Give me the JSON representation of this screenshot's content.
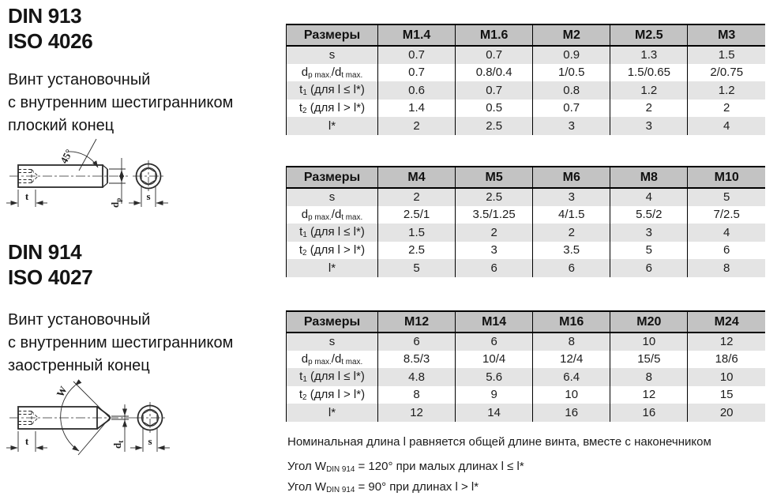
{
  "colors": {
    "header_bg": "#c3c3c3",
    "row_alt_bg": "#e4e4e4",
    "row_bg": "#ffffff",
    "border": "#000000",
    "text": "#1c1c1c"
  },
  "sections": [
    {
      "standards": [
        "DIN 913",
        "ISO 4026"
      ],
      "description": [
        "Винт установочный",
        "с внутренним шестигранником",
        "плоский конец"
      ]
    },
    {
      "standards": [
        "DIN 914",
        "ISO 4027"
      ],
      "description": [
        "Винт установочный",
        "с внутренним шестигранником",
        "заостренный конец"
      ]
    }
  ],
  "drawings": [
    {
      "name": "set-screw-flat-point",
      "labels": {
        "angle": "45°",
        "depth": "t",
        "dia_base": "d",
        "dia_sub": "p",
        "width_flats": "s"
      }
    },
    {
      "name": "set-screw-cone-point",
      "labels": {
        "angle": "W",
        "depth": "t",
        "dia_base": "d",
        "dia_sub": "t",
        "width_flats": "s"
      }
    }
  ],
  "tables": [
    {
      "header": [
        "Размеры",
        "M1.4",
        "M1.6",
        "M2",
        "M2.5",
        "M3"
      ],
      "rows": [
        {
          "label": [
            {
              "t": "s"
            }
          ],
          "values": [
            "0.7",
            "0.7",
            "0.9",
            "1.3",
            "1.5"
          ]
        },
        {
          "label": [
            {
              "t": "d"
            },
            {
              "s": "p max."
            },
            {
              "t": "/d"
            },
            {
              "s": "t max."
            }
          ],
          "values": [
            "0.7",
            "0.8/0.4",
            "1/0.5",
            "1.5/0.65",
            "2/0.75"
          ]
        },
        {
          "label": [
            {
              "t": "t"
            },
            {
              "s": "1"
            },
            {
              "t": " (для l ≤ l*)"
            }
          ],
          "values": [
            "0.6",
            "0.7",
            "0.8",
            "1.2",
            "1.2"
          ]
        },
        {
          "label": [
            {
              "t": "t"
            },
            {
              "s": "2"
            },
            {
              "t": " (для l > l*)"
            }
          ],
          "values": [
            "1.4",
            "0.5",
            "0.7",
            "2",
            "2"
          ]
        },
        {
          "label": [
            {
              "t": "l*"
            }
          ],
          "values": [
            "2",
            "2.5",
            "3",
            "3",
            "4"
          ]
        }
      ]
    },
    {
      "header": [
        "Размеры",
        "M4",
        "M5",
        "M6",
        "M8",
        "M10"
      ],
      "rows": [
        {
          "label": [
            {
              "t": "s"
            }
          ],
          "values": [
            "2",
            "2.5",
            "3",
            "4",
            "5"
          ]
        },
        {
          "label": [
            {
              "t": "d"
            },
            {
              "s": "p max."
            },
            {
              "t": "/d"
            },
            {
              "s": "t max."
            }
          ],
          "values": [
            "2.5/1",
            "3.5/1.25",
            "4/1.5",
            "5.5/2",
            "7/2.5"
          ]
        },
        {
          "label": [
            {
              "t": "t"
            },
            {
              "s": "1"
            },
            {
              "t": " (для l ≤ l*)"
            }
          ],
          "values": [
            "1.5",
            "2",
            "2",
            "3",
            "4"
          ]
        },
        {
          "label": [
            {
              "t": "t"
            },
            {
              "s": "2"
            },
            {
              "t": " (для l > l*)"
            }
          ],
          "values": [
            "2.5",
            "3",
            "3.5",
            "5",
            "6"
          ]
        },
        {
          "label": [
            {
              "t": "l*"
            }
          ],
          "values": [
            "5",
            "6",
            "6",
            "6",
            "8"
          ]
        }
      ]
    },
    {
      "header": [
        "Размеры",
        "M12",
        "M14",
        "M16",
        "M20",
        "M24"
      ],
      "rows": [
        {
          "label": [
            {
              "t": "s"
            }
          ],
          "values": [
            "6",
            "6",
            "8",
            "10",
            "12"
          ]
        },
        {
          "label": [
            {
              "t": "d"
            },
            {
              "s": "p max."
            },
            {
              "t": "/d"
            },
            {
              "s": "t max."
            }
          ],
          "values": [
            "8.5/3",
            "10/4",
            "12/4",
            "15/5",
            "18/6"
          ]
        },
        {
          "label": [
            {
              "t": "t"
            },
            {
              "s": "1"
            },
            {
              "t": " (для l ≤ l*)"
            }
          ],
          "values": [
            "4.8",
            "5.6",
            "6.4",
            "8",
            "10"
          ]
        },
        {
          "label": [
            {
              "t": "t"
            },
            {
              "s": "2"
            },
            {
              "t": " (для l > l*)"
            }
          ],
          "values": [
            "8",
            "9",
            "10",
            "12",
            "15"
          ]
        },
        {
          "label": [
            {
              "t": "l*"
            }
          ],
          "values": [
            "12",
            "14",
            "16",
            "16",
            "20"
          ]
        }
      ]
    }
  ],
  "notes": {
    "length": "Номинальная длина l равняется общей длине винта, вместе с наконечником",
    "angles": [
      [
        {
          "t": "Угол W"
        },
        {
          "s": "DIN 914"
        },
        {
          "t": " = 120° при малых длинах l ≤ l*"
        }
      ],
      [
        {
          "t": "Угол W"
        },
        {
          "s": "DIN 914"
        },
        {
          "t": " = 90° при длинах l > l*"
        }
      ]
    ]
  }
}
